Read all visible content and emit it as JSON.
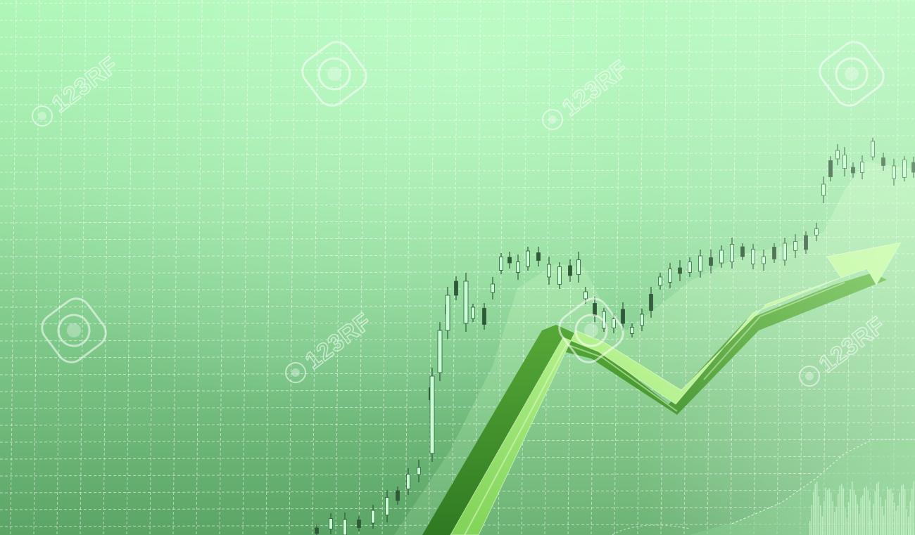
{
  "scene": {
    "description_tag": "stock-market-candlestick-background-with-rising-green-arrow",
    "colors": {
      "bg_top": "#a6f2b0",
      "bg_mid": "#86cf92",
      "bg_bottom": "#5aa466",
      "grid": "#ffffff",
      "candle_dark": "#2f5a38",
      "candle_light": "#c8ffd4",
      "arrow_light": "#b9f59a",
      "arrow_mid": "#6fc24a",
      "arrow_dark": "#3c8a2c"
    }
  },
  "watermark": {
    "text": "123RF",
    "icon": "camera-lens-icon"
  }
}
